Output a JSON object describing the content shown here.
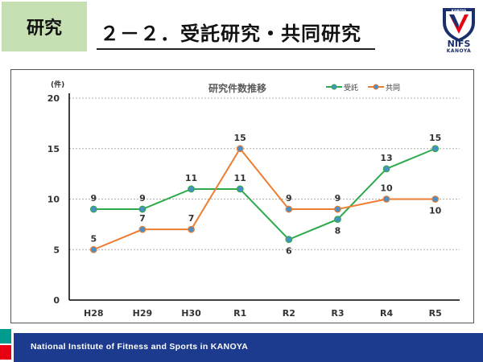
{
  "header": {
    "section_tag": "研究",
    "title": "２－２．受託研究・共同研究",
    "logo_text": "NIFS",
    "logo_sub": "KANOYA",
    "logo_badge": "KANOYA"
  },
  "footer": {
    "institute_name": "National Institute of Fitness and Sports in KANOYA"
  },
  "colors": {
    "accent_green": "#c6e0b4",
    "footer_blue": "#1d3b8e",
    "footer_teal": "#009b8f",
    "footer_red": "#e60012",
    "series_consigned": "#2eaa4d",
    "series_joint": "#ed7d31",
    "marker_fill": "#4a90c8"
  },
  "chart_data": {
    "type": "line",
    "title": "研究件数推移",
    "unit_label": "(件)",
    "categories": [
      "H28",
      "H29",
      "H30",
      "R1",
      "R2",
      "R3",
      "R4",
      "R5"
    ],
    "ylim": [
      0,
      20
    ],
    "yticks": [
      0,
      5,
      10,
      15,
      20
    ],
    "grid": true,
    "legend_position": "top-right",
    "series": [
      {
        "name": "受託",
        "color": "#2eaa4d",
        "values": [
          9,
          9,
          11,
          11,
          6,
          8,
          13,
          15
        ],
        "label_side": [
          "above",
          "above",
          "above",
          "above",
          "below",
          "below",
          "above",
          "above"
        ]
      },
      {
        "name": "共同",
        "color": "#ed7d31",
        "values": [
          5,
          7,
          7,
          15,
          9,
          9,
          10,
          10
        ],
        "label_side": [
          "above",
          "above",
          "above",
          "above",
          "above",
          "above",
          "above",
          "below"
        ]
      }
    ]
  }
}
